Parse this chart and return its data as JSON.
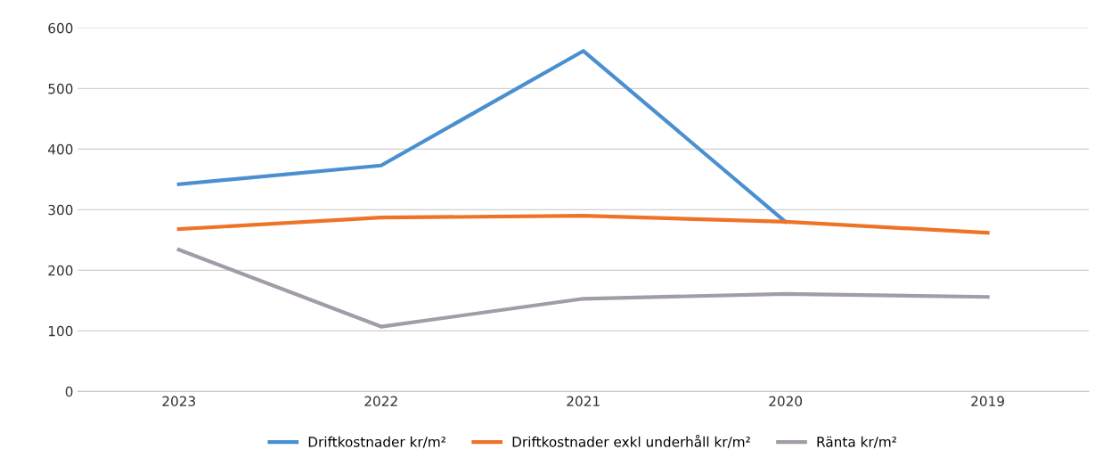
{
  "chart_data": {
    "type": "line",
    "categories": [
      "2023",
      "2022",
      "2021",
      "2020",
      "2019"
    ],
    "series": [
      {
        "name": "Driftkostnader kr/m²",
        "color": "#4a8fd0",
        "values": [
          342,
          373,
          562,
          280,
          null
        ]
      },
      {
        "name": "Driftkostnader exkl underhåll kr/m²",
        "color": "#ee7326",
        "values": [
          268,
          287,
          290,
          280,
          262
        ]
      },
      {
        "name": "Ränta kr/m²",
        "color": "#a39ca8",
        "values": [
          234,
          107,
          153,
          161,
          156
        ]
      }
    ],
    "ylim": [
      0,
      600
    ],
    "yticks": [
      0,
      100,
      200,
      300,
      400,
      500,
      600
    ],
    "grid": "y",
    "legend": "bottom",
    "marker": "none",
    "line_style": "solid"
  }
}
